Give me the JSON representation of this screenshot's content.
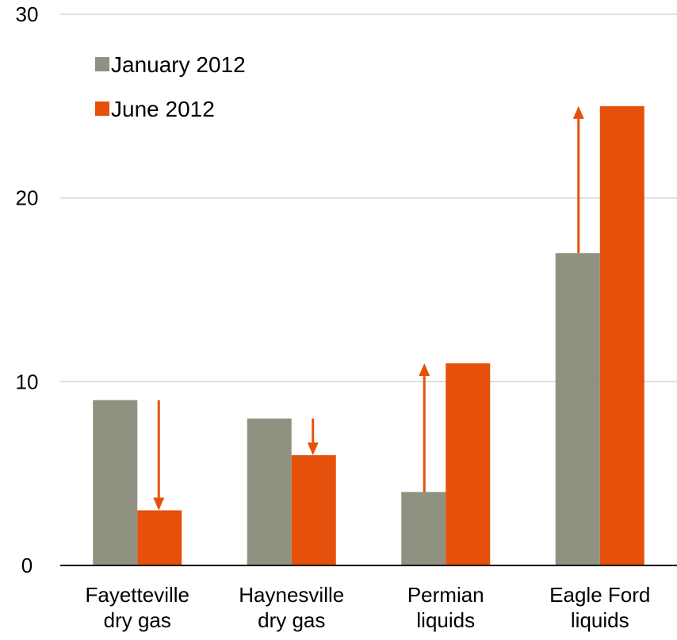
{
  "chart_data": {
    "type": "bar",
    "categories": [
      [
        "Fayetteville",
        "dry gas"
      ],
      [
        "Haynesville",
        "dry gas"
      ],
      [
        "Permian",
        "liquids"
      ],
      [
        "Eagle Ford",
        "liquids"
      ]
    ],
    "series": [
      {
        "name": "January 2012",
        "values": [
          9,
          8,
          4,
          17
        ],
        "color": "#8f9280"
      },
      {
        "name": "June 2012",
        "values": [
          3,
          6,
          11,
          25
        ],
        "color": "#e5510a"
      }
    ],
    "arrows": [
      {
        "category": 0,
        "from": 9,
        "to": 3,
        "direction": "down"
      },
      {
        "category": 1,
        "from": 8,
        "to": 6,
        "direction": "down"
      },
      {
        "category": 2,
        "from": 4,
        "to": 11,
        "direction": "up"
      },
      {
        "category": 3,
        "from": 17,
        "to": 25,
        "direction": "up"
      }
    ],
    "arrow_color": "#e5510a",
    "title": "",
    "xlabel": "",
    "ylabel": "",
    "ylim": [
      0,
      30
    ],
    "yticks": [
      0,
      10,
      20,
      30
    ],
    "grid": true,
    "legend_position": "top-left"
  }
}
